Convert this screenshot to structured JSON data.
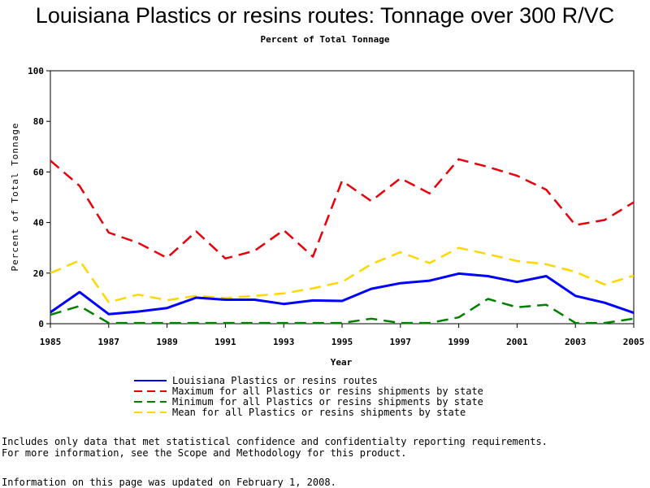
{
  "title": "Louisiana Plastics or resins routes: Tonnage over 300 R/VC",
  "subtitle": "Percent of Total Tonnage",
  "notes": [
    "Includes only data that met statistical confidence and confidentialty reporting requirements.",
    "For more information, see the Scope and Methodology for this product."
  ],
  "updated": "Information on this page was updated on February 1, 2008.",
  "chart_data": {
    "type": "line",
    "xlabel": "Year",
    "ylabel": "Percent of Total Tonnage",
    "xlim": [
      1985,
      2005
    ],
    "ylim": [
      0,
      100
    ],
    "x_ticks": [
      1985,
      1987,
      1989,
      1991,
      1993,
      1995,
      1997,
      1999,
      2001,
      2003,
      2005
    ],
    "y_ticks": [
      0,
      20,
      40,
      60,
      80,
      100
    ],
    "grid": false,
    "legend": "below",
    "x": [
      1985,
      1986,
      1987,
      1988,
      1989,
      1990,
      1991,
      1992,
      1993,
      1994,
      1995,
      1996,
      1997,
      1998,
      1999,
      2000,
      2001,
      2002,
      2003,
      2004,
      2005
    ],
    "series": [
      {
        "name": "Louisiana Plastics or resins routes",
        "color": "#0000ff",
        "style": "solid",
        "values": [
          4.5,
          12.5,
          3.8,
          4.8,
          6.2,
          10.3,
          9.5,
          9.5,
          7.8,
          9.2,
          9.0,
          13.8,
          16.0,
          17.0,
          19.8,
          18.8,
          16.5,
          18.8,
          11.0,
          8.3,
          4.3
        ]
      },
      {
        "name": "Maximum for all Plastics or resins shipments by state",
        "color": "#e8000b",
        "style": "dashed",
        "values": [
          64.5,
          54.5,
          36.0,
          32.0,
          26.0,
          36.5,
          25.8,
          28.8,
          37.0,
          26.5,
          56.5,
          48.5,
          57.5,
          51.5,
          65.0,
          62.0,
          58.5,
          53.0,
          39.0,
          41.0,
          48.0
        ]
      },
      {
        "name": "Minimum for all Plastics or resins shipments by state",
        "color": "#008000",
        "style": "dashed",
        "values": [
          3.5,
          7.0,
          0.3,
          0.3,
          0.3,
          0.3,
          0.3,
          0.3,
          0.3,
          0.3,
          0.3,
          2.0,
          0.3,
          0.3,
          2.5,
          9.8,
          6.5,
          7.5,
          0.3,
          0.3,
          2.0
        ]
      },
      {
        "name": "Mean for all Plastics or resins shipments by state",
        "color": "#ffd700",
        "style": "dashed",
        "values": [
          20.0,
          25.0,
          8.5,
          11.5,
          9.3,
          11.0,
          10.2,
          11.0,
          12.0,
          14.0,
          16.5,
          23.5,
          28.3,
          24.0,
          30.0,
          27.5,
          24.8,
          23.5,
          20.5,
          15.5,
          19.0
        ]
      }
    ]
  }
}
